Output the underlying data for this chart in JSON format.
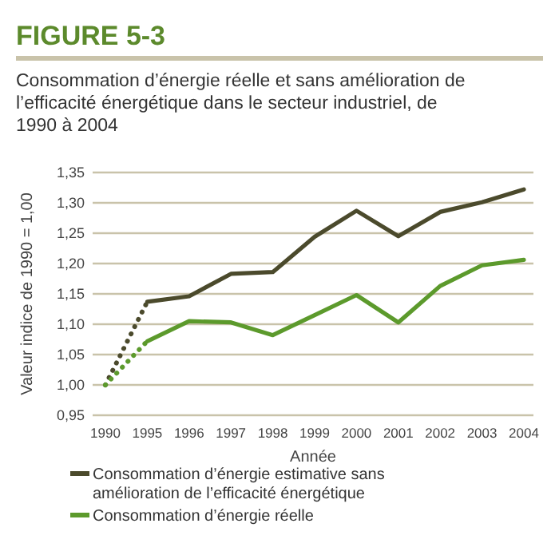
{
  "chart_data": {
    "type": "line",
    "title": "FIGURE 5-3",
    "subtitle": "Consommation d’énergie réelle et sans amélioration de l’efficacité énergétique dans le secteur industriel, de 1990 à 2004",
    "xlabel": "Année",
    "ylabel": "Valeur indice de 1990 = 1,00",
    "categories": [
      "1990",
      "1995",
      "1996",
      "1997",
      "1998",
      "1999",
      "2000",
      "2001",
      "2002",
      "2003",
      "2004"
    ],
    "series": [
      {
        "name": "Consommation d’énergie estimative sans amélioration de l’efficacité énergétique",
        "color": "#4b4a2c",
        "values": [
          null,
          1.137,
          1.146,
          1.183,
          1.186,
          1.244,
          1.287,
          1.245,
          1.285,
          1.301,
          1.322
        ]
      },
      {
        "name": "Consommation d’énergie réelle",
        "color": "#5c9a2c",
        "values": [
          null,
          1.072,
          1.105,
          1.103,
          1.082,
          1.115,
          1.148,
          1.103,
          1.163,
          1.197,
          1.206
        ]
      },
      {
        "color": "#4b4a2c",
        "line_style": "dotted",
        "values": [
          1.0,
          1.137,
          null,
          null,
          null,
          null,
          null,
          null,
          null,
          null,
          null
        ]
      },
      {
        "color": "#5c9a2c",
        "line_style": "dotted",
        "values": [
          1.0,
          1.072,
          null,
          null,
          null,
          null,
          null,
          null,
          null,
          null,
          null
        ]
      }
    ],
    "ylim": [
      0.95,
      1.35
    ],
    "yticks": [
      {
        "value": 0.95,
        "label": "0,95"
      },
      {
        "value": 1.0,
        "label": "1,00"
      },
      {
        "value": 1.05,
        "label": "1,05"
      },
      {
        "value": 1.1,
        "label": "1,10"
      },
      {
        "value": 1.15,
        "label": "1,15"
      },
      {
        "value": 1.2,
        "label": "1,20"
      },
      {
        "value": 1.25,
        "label": "1,25"
      },
      {
        "value": 1.3,
        "label": "1,30"
      },
      {
        "value": 1.35,
        "label": "1,35"
      }
    ],
    "grid": "y",
    "legend": "bottom",
    "line_style": "solid",
    "marker": "none"
  }
}
